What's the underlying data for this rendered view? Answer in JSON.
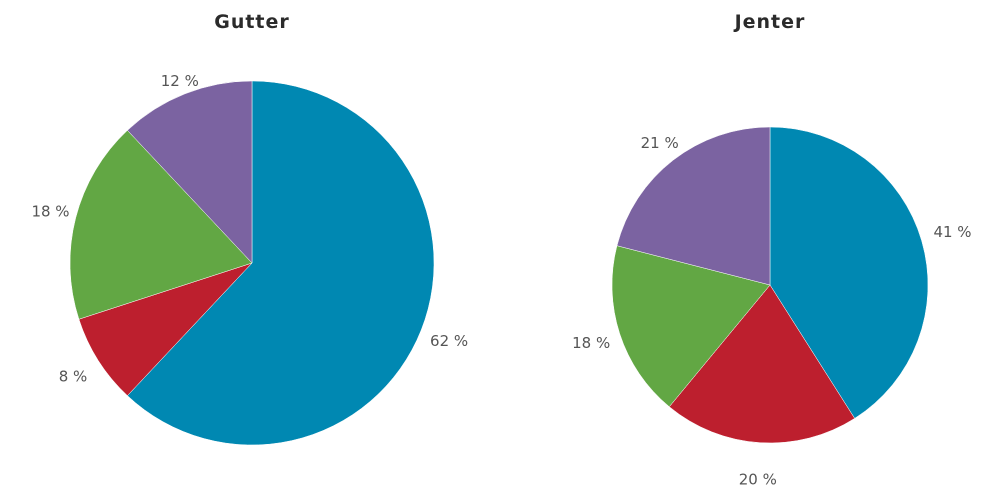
{
  "chart_data": [
    {
      "type": "pie",
      "title": "Gutter",
      "slices": [
        {
          "label": "62 %",
          "value": 62,
          "color": "#0088b2"
        },
        {
          "label": "8 %",
          "value": 8,
          "color": "#bd1f2e"
        },
        {
          "label": "18 %",
          "value": 18,
          "color": "#62a744"
        },
        {
          "label": "12 %",
          "value": 12,
          "color": "#7b63a1"
        }
      ]
    },
    {
      "type": "pie",
      "title": "Jenter",
      "slices": [
        {
          "label": "41 %",
          "value": 41,
          "color": "#0088b2"
        },
        {
          "label": "20 %",
          "value": 20,
          "color": "#bd1f2e"
        },
        {
          "label": "18 %",
          "value": 18,
          "color": "#62a744"
        },
        {
          "label": "21 %",
          "value": 21,
          "color": "#7b63a1"
        }
      ]
    }
  ]
}
